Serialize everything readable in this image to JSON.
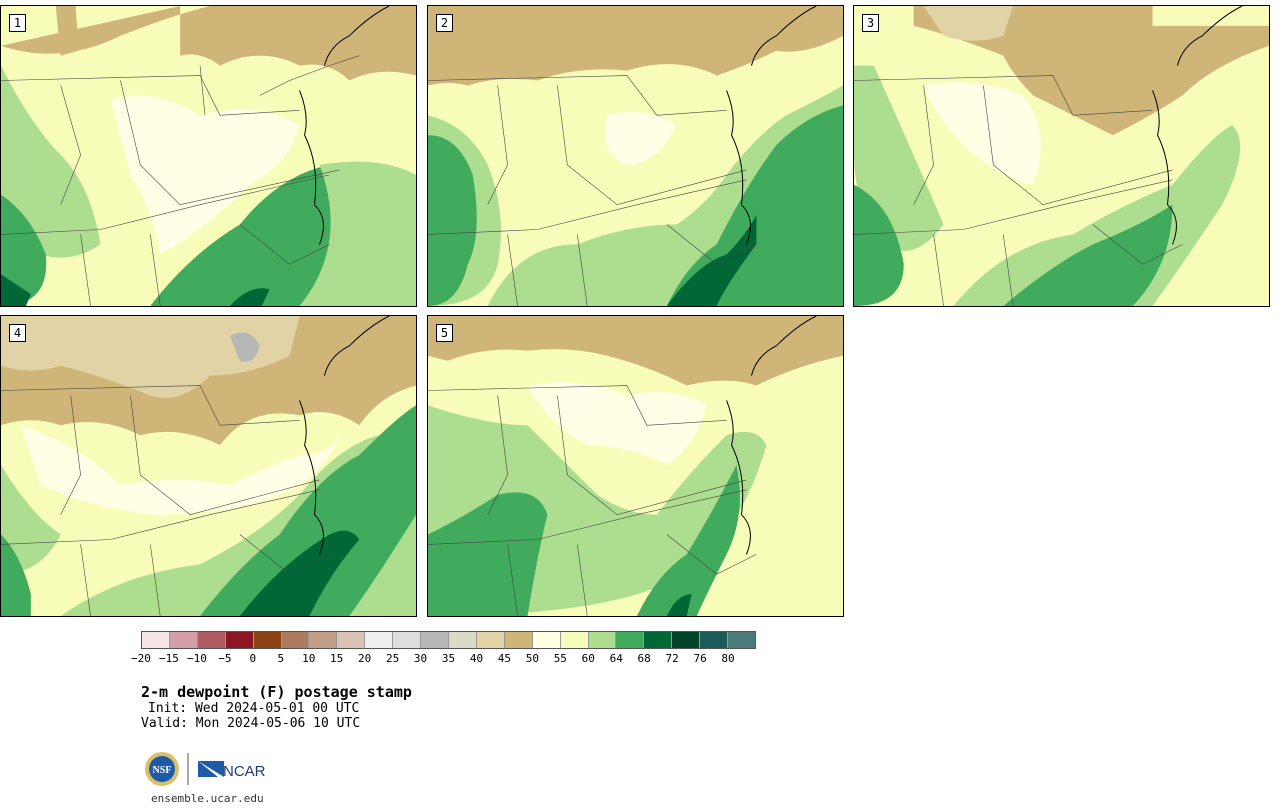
{
  "panels": [
    {
      "number": "1"
    },
    {
      "number": "2"
    },
    {
      "number": "3"
    },
    {
      "number": "4"
    },
    {
      "number": "5"
    }
  ],
  "colorbar": {
    "colors": [
      "#f5e6e6",
      "#d39ea5",
      "#b05b64",
      "#8c1722",
      "#8b4513",
      "#ad7b5e",
      "#c39e87",
      "#dcc2b2",
      "#eeeeee",
      "#dddddd",
      "#b7b7b7",
      "#d9dac8",
      "#e1d3a6",
      "#cfb578",
      "#ffffe5",
      "#f7fcb9",
      "#addd8e",
      "#41ab5d",
      "#006837",
      "#004529",
      "#1d5a5a",
      "#4a7a7a"
    ],
    "ticks": [
      "−20",
      "−15",
      "−10",
      "−5",
      "0",
      "5",
      "10",
      "15",
      "20",
      "25",
      "30",
      "35",
      "40",
      "45",
      "50",
      "55",
      "60",
      "64",
      "68",
      "72",
      "76",
      "80"
    ]
  },
  "title": "2-m dewpoint (F) postage stamp",
  "init": "Init: Wed 2024-05-01 00 UTC",
  "valid": "Valid: Mon 2024-05-06 10 UTC",
  "logos": {
    "nsf_text": "NSF",
    "ncar_text": "NCAR",
    "nsf_icon": "nsf-seal-icon",
    "ncar_icon": "ncar-mark-icon"
  },
  "site": "ensemble.ucar.edu"
}
